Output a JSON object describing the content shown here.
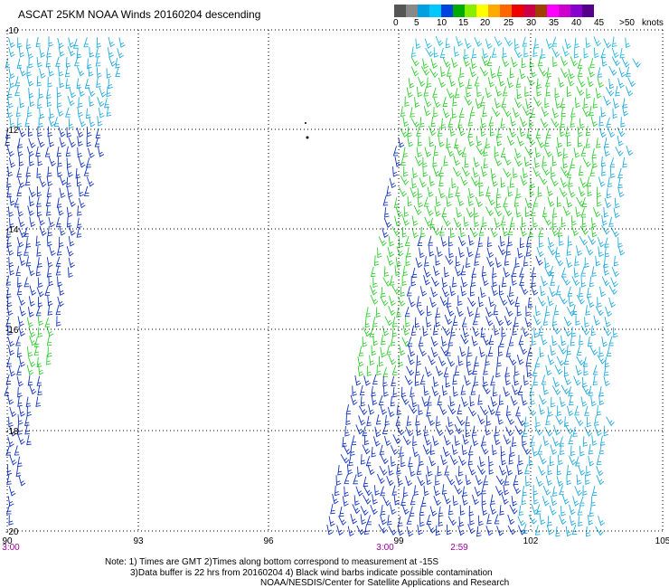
{
  "title": "ASCAT 25KM NOAA Winds 20160204 descending",
  "legend": {
    "unit": "knots",
    "labels": [
      "0",
      "5",
      "10",
      "15",
      "20",
      "25",
      "30",
      "35",
      "40",
      "45",
      ">50"
    ],
    "colors": [
      "#555555",
      "#888888",
      "#00a0e0",
      "#00c8ff",
      "#0044dd",
      "#00aa00",
      "#88ee00",
      "#ffff00",
      "#ffaa00",
      "#ff6600",
      "#ee0000",
      "#cc0044",
      "#a04000",
      "#ff00ff",
      "#cc00cc",
      "#8800cc",
      "#550088"
    ]
  },
  "map": {
    "lat_labels": [
      "-10",
      "-12",
      "-14",
      "-16",
      "-18",
      "-20"
    ],
    "lon_labels": [
      "90",
      "93",
      "96",
      "99",
      "102",
      "105"
    ],
    "time_labels": [
      "3:00",
      "3:00",
      "2:59"
    ],
    "time_color": "#990099"
  },
  "notes": [
    "Note: 1) Times are GMT 2)Times along bottom correspond to measurement at -15S",
    "3)Data buffer is 22 hrs from 20160204 4) Black wind barbs indicate possible contamination",
    "NOAA/NESDIS/Center for Satellite Applications and Research"
  ]
}
